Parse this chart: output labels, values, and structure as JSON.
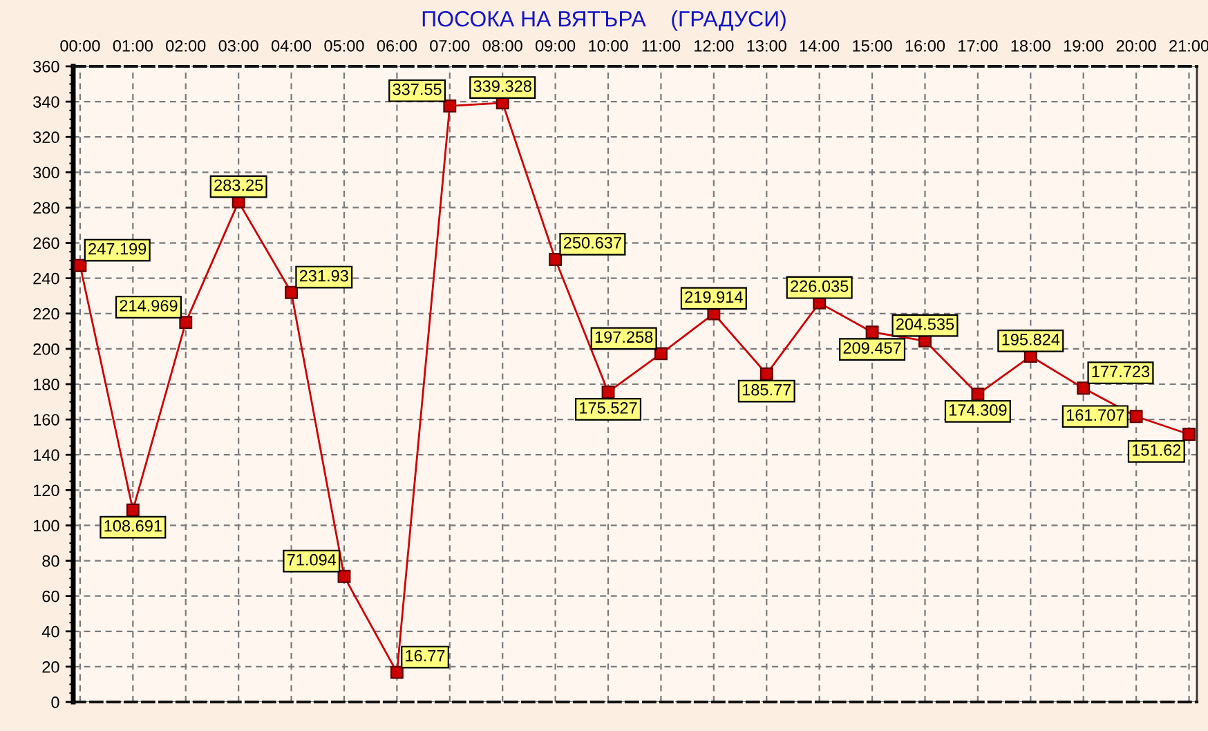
{
  "chart_data": {
    "type": "line",
    "title": "ПОСОКА НА ВЯТЪРА    (ГРАДУСИ)",
    "categories": [
      "00:00",
      "01:00",
      "02:00",
      "03:00",
      "04:00",
      "05:00",
      "06:00",
      "07:00",
      "08:00",
      "09:00",
      "10:00",
      "11:00",
      "12:00",
      "13:00",
      "14:00",
      "15:00",
      "16:00",
      "17:00",
      "18:00",
      "19:00",
      "20:00",
      "21:00"
    ],
    "series": [
      {
        "color": "#cc0000",
        "values": [
          247.199,
          108.691,
          214.969,
          283.25,
          231.93,
          71.094,
          16.77,
          337.55,
          339.328,
          250.637,
          175.527,
          197.258,
          219.914,
          185.77,
          226.035,
          209.457,
          204.535,
          174.309,
          195.824,
          177.723,
          161.707,
          151.62
        ]
      }
    ],
    "ylim": [
      0,
      360
    ],
    "yticks": [
      0,
      20,
      40,
      60,
      80,
      100,
      120,
      140,
      160,
      180,
      200,
      220,
      240,
      260,
      280,
      300,
      320,
      340,
      360
    ],
    "grid": true,
    "marker": "square",
    "line_style": "solid",
    "data_labels": true
  }
}
